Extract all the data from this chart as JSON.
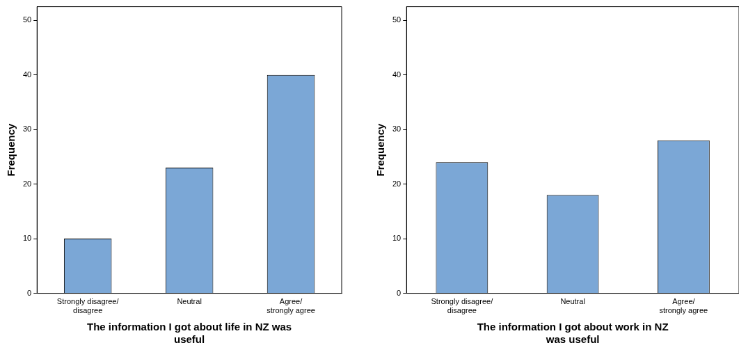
{
  "chart_data": [
    {
      "type": "bar",
      "xlabel": "The information I got about life in NZ was useful",
      "ylabel": "Frequency",
      "categories": [
        "Strongly disagree/\ndisagree",
        "Neutral",
        "Agree/\nstrongly agree"
      ],
      "values": [
        10,
        23,
        40
      ],
      "color": "#7ba7d6",
      "ylim": [
        0,
        52.5
      ],
      "yticks": [
        0,
        10,
        20,
        30,
        40,
        50
      ],
      "grid": false,
      "legend": false
    },
    {
      "type": "bar",
      "xlabel": "The information I got about work in NZ was useful",
      "ylabel": "Frequency",
      "categories": [
        "Strongly disagree/\ndisagree",
        "Neutral",
        "Agree/\nstrongly agree"
      ],
      "values": [
        24,
        18,
        28
      ],
      "color": "#7ba7d6",
      "ylim": [
        0,
        52.5
      ],
      "yticks": [
        0,
        10,
        20,
        30,
        40,
        50
      ],
      "grid": false,
      "legend": false
    }
  ]
}
